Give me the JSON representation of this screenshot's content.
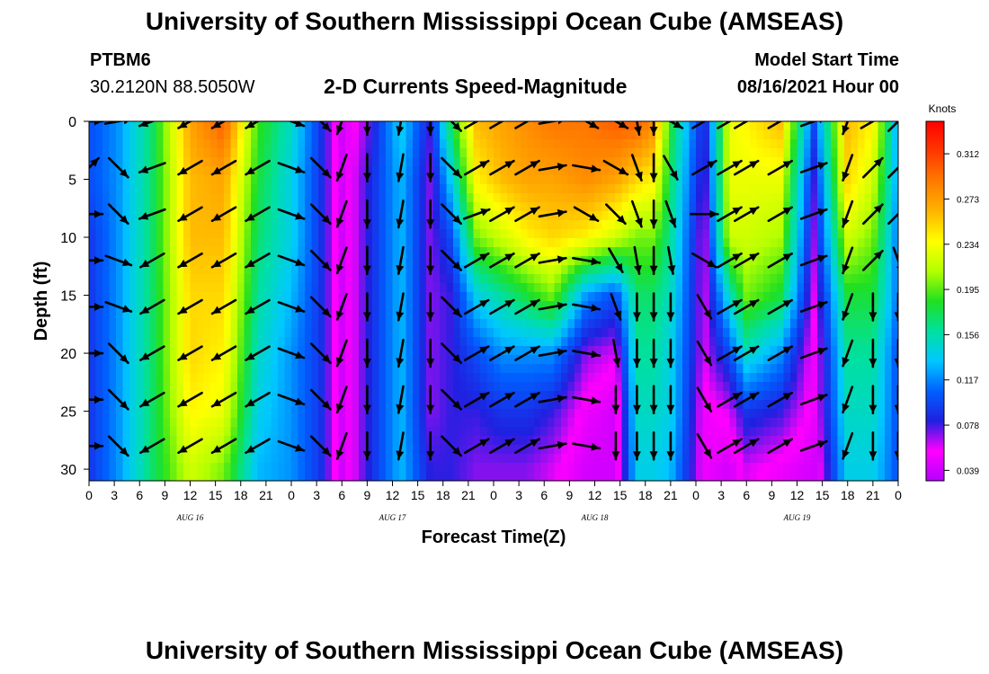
{
  "header": {
    "title": "University of Southern Mississippi Ocean Cube (AMSEAS)",
    "station_id": "PTBM6",
    "station_coords": "30.2120N  88.5050W",
    "plot_title": "2-D Currents Speed-Magnitude",
    "model_start_label": "Model Start Time",
    "model_start_value": "08/16/2021 Hour 00"
  },
  "footer": {
    "title": "University of Southern Mississippi Ocean Cube (AMSEAS)"
  },
  "colors": {
    "scale": [
      "#b400ff",
      "#ff00ff",
      "#2020e0",
      "#0060ff",
      "#00c8ff",
      "#00e0a0",
      "#20e020",
      "#b4ff00",
      "#ffff00",
      "#ffb400",
      "#ff7a00",
      "#ff3800",
      "#ff0000"
    ]
  },
  "chart_data": {
    "type": "heatmap",
    "title": "2-D Currents Speed-Magnitude",
    "xlabel": "Forecast Time(Z)",
    "ylabel": "Depth (ft)",
    "x_ticks": [
      "0",
      "3",
      "6",
      "9",
      "12",
      "15",
      "18",
      "21",
      "0",
      "3",
      "6",
      "9",
      "12",
      "15",
      "18",
      "21",
      "0",
      "3",
      "6",
      "9",
      "12",
      "15",
      "18",
      "21",
      "0",
      "3",
      "6",
      "9",
      "12",
      "15",
      "18",
      "21",
      "0"
    ],
    "x_day_labels": [
      {
        "label": "AUG 16",
        "hour": 12
      },
      {
        "label": "AUG 17",
        "hour": 36
      },
      {
        "label": "AUG 18",
        "hour": 60
      },
      {
        "label": "AUG 19",
        "hour": 84
      }
    ],
    "x_range_hours": [
      0,
      96
    ],
    "y_ticks": [
      0,
      5,
      10,
      15,
      20,
      25,
      30
    ],
    "y_range_ft": [
      0,
      31
    ],
    "colorbar": {
      "unit": "Knots",
      "ticks": [
        "0.312",
        "0.273",
        "0.234",
        "0.195",
        "0.156",
        "0.117",
        "0.078",
        "0.039"
      ],
      "range": [
        0.03,
        0.34
      ]
    },
    "profile_hours": [
      0,
      3.5,
      7.5,
      12,
      16,
      20,
      24,
      27.5,
      30,
      33,
      37,
      40.5,
      43,
      46,
      49,
      52,
      55,
      59,
      62.5,
      65,
      67,
      69,
      73,
      76,
      78,
      82,
      86,
      90,
      93,
      96
    ],
    "speed_profiles": [
      [
        0.1,
        0.1,
        0.09,
        0.09,
        0.09,
        0.09,
        0.09
      ],
      [
        0.12,
        0.12,
        0.12,
        0.12,
        0.12,
        0.12,
        0.12
      ],
      [
        0.17,
        0.17,
        0.17,
        0.17,
        0.17,
        0.17,
        0.17
      ],
      [
        0.27,
        0.26,
        0.26,
        0.25,
        0.25,
        0.24,
        0.22
      ],
      [
        0.3,
        0.27,
        0.26,
        0.25,
        0.24,
        0.23,
        0.2
      ],
      [
        0.19,
        0.18,
        0.17,
        0.16,
        0.15,
        0.14,
        0.13
      ],
      [
        0.15,
        0.14,
        0.14,
        0.13,
        0.12,
        0.12,
        0.12
      ],
      [
        0.09,
        0.09,
        0.09,
        0.09,
        0.09,
        0.09,
        0.09
      ],
      [
        0.04,
        0.04,
        0.04,
        0.04,
        0.04,
        0.04,
        0.04
      ],
      [
        0.07,
        0.08,
        0.08,
        0.08,
        0.08,
        0.08,
        0.08
      ],
      [
        0.14,
        0.13,
        0.13,
        0.13,
        0.13,
        0.13,
        0.13
      ],
      [
        0.08,
        0.07,
        0.07,
        0.07,
        0.07,
        0.07,
        0.08
      ],
      [
        0.18,
        0.14,
        0.1,
        0.08,
        0.08,
        0.08,
        0.08
      ],
      [
        0.26,
        0.24,
        0.2,
        0.14,
        0.1,
        0.08,
        0.07
      ],
      [
        0.27,
        0.26,
        0.22,
        0.16,
        0.12,
        0.09,
        0.07
      ],
      [
        0.28,
        0.27,
        0.24,
        0.18,
        0.12,
        0.09,
        0.07
      ],
      [
        0.29,
        0.27,
        0.25,
        0.2,
        0.12,
        0.08,
        0.06
      ],
      [
        0.29,
        0.28,
        0.24,
        0.12,
        0.07,
        0.05,
        0.04
      ],
      [
        0.3,
        0.27,
        0.22,
        0.1,
        0.06,
        0.04,
        0.04
      ],
      [
        0.3,
        0.25,
        0.2,
        0.17,
        0.16,
        0.15,
        0.14
      ],
      [
        0.28,
        0.24,
        0.2,
        0.17,
        0.16,
        0.15,
        0.14
      ],
      [
        0.18,
        0.17,
        0.16,
        0.15,
        0.14,
        0.14,
        0.13
      ],
      [
        0.08,
        0.07,
        0.06,
        0.06,
        0.06,
        0.05,
        0.05
      ],
      [
        0.23,
        0.23,
        0.22,
        0.15,
        0.1,
        0.06,
        0.04
      ],
      [
        0.24,
        0.23,
        0.22,
        0.2,
        0.15,
        0.09,
        0.06
      ],
      [
        0.26,
        0.23,
        0.21,
        0.18,
        0.12,
        0.08,
        0.05
      ],
      [
        0.1,
        0.08,
        0.07,
        0.06,
        0.05,
        0.05,
        0.04
      ],
      [
        0.26,
        0.25,
        0.22,
        0.18,
        0.16,
        0.15,
        0.14
      ],
      [
        0.24,
        0.22,
        0.2,
        0.18,
        0.16,
        0.15,
        0.14
      ],
      [
        0.12,
        0.12,
        0.11,
        0.11,
        0.1,
        0.1,
        0.1
      ]
    ],
    "vector_hours": [
      0,
      3.5,
      7.5,
      12,
      16,
      20,
      24,
      27.5,
      30,
      33,
      37,
      40.5,
      43,
      46,
      49,
      52,
      55,
      59,
      62.5,
      65,
      67,
      69,
      73,
      76,
      78,
      82,
      86,
      90,
      93,
      96
    ],
    "vector_depths_ft": [
      0,
      4,
      8,
      12,
      16,
      20,
      24,
      28
    ],
    "vector_directions_deg": [
      [
        90,
        45,
        90,
        90,
        90,
        90,
        90,
        90
      ],
      [
        80,
        135,
        135,
        110,
        110,
        135,
        135,
        135
      ],
      [
        250,
        250,
        250,
        240,
        240,
        240,
        240,
        240
      ],
      [
        240,
        240,
        240,
        240,
        240,
        240,
        240,
        240
      ],
      [
        240,
        240,
        240,
        240,
        240,
        240,
        240,
        240
      ],
      [
        240,
        240,
        240,
        240,
        240,
        240,
        240,
        240
      ],
      [
        110,
        110,
        110,
        110,
        110,
        110,
        110,
        110
      ],
      [
        135,
        135,
        135,
        135,
        135,
        135,
        135,
        135
      ],
      [
        200,
        200,
        200,
        200,
        200,
        200,
        200,
        200
      ],
      [
        180,
        180,
        180,
        180,
        180,
        180,
        180,
        180
      ],
      [
        190,
        190,
        190,
        190,
        190,
        190,
        190,
        190
      ],
      [
        180,
        180,
        180,
        180,
        180,
        180,
        180,
        180
      ],
      [
        135,
        135,
        135,
        135,
        135,
        135,
        135,
        135
      ],
      [
        60,
        60,
        70,
        60,
        60,
        60,
        60,
        60
      ],
      [
        60,
        60,
        60,
        60,
        60,
        60,
        60,
        60
      ],
      [
        60,
        60,
        60,
        60,
        60,
        60,
        60,
        60
      ],
      [
        80,
        80,
        80,
        80,
        80,
        80,
        80,
        80
      ],
      [
        120,
        100,
        120,
        100,
        100,
        100,
        100,
        100
      ],
      [
        120,
        120,
        135,
        150,
        160,
        170,
        180,
        180
      ],
      [
        170,
        160,
        160,
        170,
        180,
        180,
        180,
        180
      ],
      [
        180,
        180,
        180,
        180,
        180,
        180,
        180,
        180
      ],
      [
        120,
        150,
        160,
        170,
        180,
        180,
        180,
        180
      ],
      [
        60,
        60,
        90,
        120,
        150,
        150,
        150,
        150
      ],
      [
        60,
        60,
        60,
        60,
        60,
        60,
        60,
        60
      ],
      [
        60,
        60,
        60,
        60,
        60,
        60,
        60,
        60
      ],
      [
        60,
        60,
        60,
        60,
        60,
        60,
        60,
        60
      ],
      [
        70,
        70,
        70,
        70,
        70,
        70,
        70,
        70
      ],
      [
        200,
        200,
        200,
        200,
        200,
        200,
        200,
        200
      ],
      [
        60,
        45,
        45,
        45,
        180,
        180,
        180,
        180
      ],
      [
        45,
        45,
        45,
        160,
        180,
        180,
        180,
        180
      ]
    ]
  }
}
